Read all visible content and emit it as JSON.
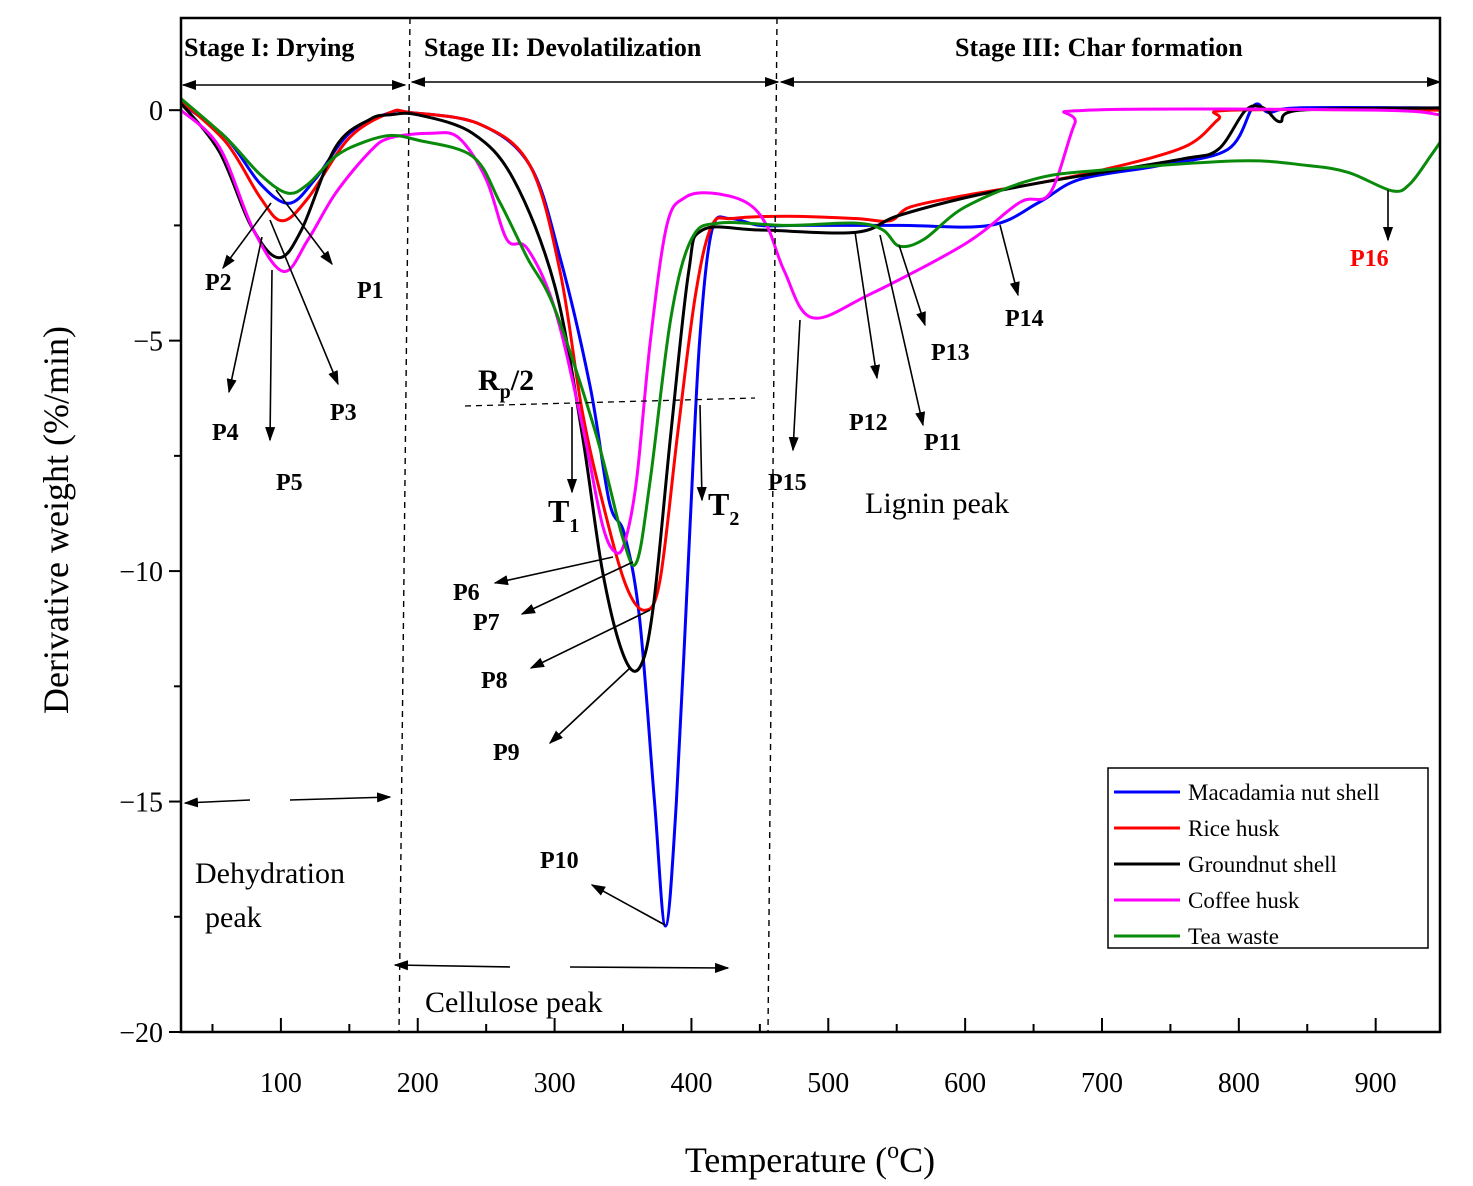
{
  "chart_data": {
    "type": "line",
    "title": "",
    "xlabel": "Temperature (",
    "xlabel_sup": "o",
    "xlabel_unit": "C)",
    "ylabel": "Derivative weight (%/min)",
    "xlim": [
      27,
      947
    ],
    "ylim": [
      -20,
      2
    ],
    "xticks": [
      100,
      200,
      300,
      400,
      500,
      600,
      700,
      800,
      900
    ],
    "xtick_labels": [
      "100",
      "200",
      "300",
      "400",
      "500",
      "600",
      "700",
      "800",
      "900"
    ],
    "yticks": [
      0,
      -5,
      -10,
      -15,
      -20
    ],
    "ytick_labels": [
      "0",
      "−5",
      "−10",
      "−15",
      "−20"
    ],
    "grid": false,
    "legend_position": "bottom-right",
    "series": [
      {
        "name": "Macadamia nut shell",
        "color": "#0000ff",
        "points": [
          [
            27,
            0.15
          ],
          [
            60,
            -0.6
          ],
          [
            85,
            -1.6
          ],
          [
            106,
            -2.02
          ],
          [
            125,
            -1.5
          ],
          [
            150,
            -0.5
          ],
          [
            180,
            -0.05
          ],
          [
            194,
            -0.05
          ],
          [
            245,
            -0.3
          ],
          [
            282,
            -1.2
          ],
          [
            304,
            -3.2
          ],
          [
            326,
            -6
          ],
          [
            340,
            -8.5
          ],
          [
            351,
            -9.2
          ],
          [
            362,
            -11
          ],
          [
            373,
            -15
          ],
          [
            381,
            -17.7
          ],
          [
            389,
            -15
          ],
          [
            399,
            -9
          ],
          [
            406,
            -5
          ],
          [
            415,
            -2.6
          ],
          [
            428,
            -2.35
          ],
          [
            450,
            -2.5
          ],
          [
            479,
            -2.5
          ],
          [
            552,
            -2.5
          ],
          [
            618,
            -2.5
          ],
          [
            654,
            -2.0
          ],
          [
            684,
            -1.5
          ],
          [
            742,
            -1.2
          ],
          [
            792,
            -0.85
          ],
          [
            811,
            0.1
          ],
          [
            822,
            -0.05
          ],
          [
            844,
            0.05
          ],
          [
            947,
            0.05
          ]
        ]
      },
      {
        "name": "Rice husk",
        "color": "#ff0000",
        "points": [
          [
            27,
            0.2
          ],
          [
            60,
            -0.7
          ],
          [
            85,
            -1.9
          ],
          [
            101,
            -2.4
          ],
          [
            120,
            -1.9
          ],
          [
            150,
            -0.6
          ],
          [
            180,
            -0.05
          ],
          [
            194,
            -0.05
          ],
          [
            245,
            -0.3
          ],
          [
            282,
            -1.2
          ],
          [
            304,
            -3.5
          ],
          [
            320,
            -6.5
          ],
          [
            335,
            -8.5
          ],
          [
            352,
            -10.3
          ],
          [
            366,
            -10.85
          ],
          [
            377,
            -10.2
          ],
          [
            390,
            -7
          ],
          [
            403,
            -4
          ],
          [
            415,
            -2.5
          ],
          [
            430,
            -2.35
          ],
          [
            470,
            -2.3
          ],
          [
            520,
            -2.35
          ],
          [
            545,
            -2.4
          ],
          [
            560,
            -2.1
          ],
          [
            600,
            -1.85
          ],
          [
            650,
            -1.6
          ],
          [
            700,
            -1.3
          ],
          [
            760,
            -0.8
          ],
          [
            785,
            -0.2
          ],
          [
            795,
            0.0
          ],
          [
            947,
            0.0
          ]
        ]
      },
      {
        "name": "Groundnut shell",
        "color": "#000000",
        "points": [
          [
            27,
            0.15
          ],
          [
            55,
            -0.9
          ],
          [
            78,
            -2.5
          ],
          [
            98,
            -3.2
          ],
          [
            115,
            -2.6
          ],
          [
            140,
            -0.8
          ],
          [
            165,
            -0.2
          ],
          [
            180,
            -0.1
          ],
          [
            200,
            -0.1
          ],
          [
            240,
            -0.5
          ],
          [
            270,
            -1.5
          ],
          [
            300,
            -3.8
          ],
          [
            320,
            -7
          ],
          [
            335,
            -10
          ],
          [
            350,
            -11.8
          ],
          [
            362,
            -12.1
          ],
          [
            372,
            -10.8
          ],
          [
            385,
            -7
          ],
          [
            398,
            -3.5
          ],
          [
            408,
            -2.6
          ],
          [
            450,
            -2.6
          ],
          [
            520,
            -2.65
          ],
          [
            550,
            -2.3
          ],
          [
            600,
            -1.9
          ],
          [
            650,
            -1.6
          ],
          [
            700,
            -1.35
          ],
          [
            760,
            -1.05
          ],
          [
            785,
            -0.85
          ],
          [
            805,
            0.0
          ],
          [
            818,
            0.05
          ],
          [
            830,
            -0.25
          ],
          [
            845,
            0.0
          ],
          [
            947,
            0.05
          ]
        ]
      },
      {
        "name": "Coffee husk",
        "color": "#ff00ff",
        "points": [
          [
            27,
            0.0
          ],
          [
            55,
            -0.8
          ],
          [
            80,
            -2.6
          ],
          [
            102,
            -3.5
          ],
          [
            120,
            -2.8
          ],
          [
            140,
            -1.8
          ],
          [
            165,
            -0.9
          ],
          [
            180,
            -0.6
          ],
          [
            210,
            -0.5
          ],
          [
            230,
            -0.6
          ],
          [
            250,
            -1.5
          ],
          [
            265,
            -2.8
          ],
          [
            280,
            -3.0
          ],
          [
            300,
            -4.3
          ],
          [
            320,
            -6.8
          ],
          [
            335,
            -9.0
          ],
          [
            345,
            -9.6
          ],
          [
            352,
            -9.3
          ],
          [
            360,
            -8
          ],
          [
            370,
            -5
          ],
          [
            382,
            -2.5
          ],
          [
            395,
            -1.9
          ],
          [
            415,
            -1.8
          ],
          [
            440,
            -2.0
          ],
          [
            455,
            -2.5
          ],
          [
            468,
            -3.5
          ],
          [
            488,
            -4.5
          ],
          [
            530,
            -4.0
          ],
          [
            600,
            -2.9
          ],
          [
            640,
            -2.0
          ],
          [
            662,
            -1.8
          ],
          [
            680,
            -0.3
          ],
          [
            690,
            0.0
          ],
          [
            900,
            0.0
          ],
          [
            947,
            -0.1
          ]
        ]
      },
      {
        "name": "Tea waste",
        "color": "#0a8a0a",
        "points": [
          [
            27,
            0.25
          ],
          [
            60,
            -0.6
          ],
          [
            85,
            -1.4
          ],
          [
            105,
            -1.8
          ],
          [
            120,
            -1.6
          ],
          [
            140,
            -1.0
          ],
          [
            160,
            -0.7
          ],
          [
            180,
            -0.55
          ],
          [
            200,
            -0.65
          ],
          [
            240,
            -1.0
          ],
          [
            260,
            -2.0
          ],
          [
            280,
            -3.2
          ],
          [
            300,
            -4.3
          ],
          [
            330,
            -7.0
          ],
          [
            350,
            -9.3
          ],
          [
            360,
            -9.8
          ],
          [
            370,
            -8.0
          ],
          [
            385,
            -4.5
          ],
          [
            400,
            -2.8
          ],
          [
            420,
            -2.45
          ],
          [
            470,
            -2.5
          ],
          [
            520,
            -2.45
          ],
          [
            540,
            -2.6
          ],
          [
            552,
            -2.95
          ],
          [
            570,
            -2.8
          ],
          [
            600,
            -2.1
          ],
          [
            650,
            -1.5
          ],
          [
            700,
            -1.3
          ],
          [
            800,
            -1.1
          ],
          [
            850,
            -1.2
          ],
          [
            880,
            -1.35
          ],
          [
            912,
            -1.75
          ],
          [
            925,
            -1.6
          ],
          [
            940,
            -1.0
          ],
          [
            947,
            -0.7
          ]
        ]
      }
    ],
    "annotations": {
      "stages": [
        "Stage I: Drying",
        "Stage  II: Devolatilization",
        "Stage  III: Char formation"
      ],
      "peak_labels": [
        "P1",
        "P2",
        "P3",
        "P4",
        "P5",
        "P6",
        "P7",
        "P8",
        "P9",
        "P10",
        "P11",
        "P12",
        "P13",
        "P14",
        "P15",
        "P16"
      ],
      "highlight_color": "#ff0000",
      "rp_main": "R",
      "rp_sub": "p",
      "rp_tail": "/2",
      "t1_main": "T",
      "t1_sub": "1",
      "t2_main": "T",
      "t2_sub": "2",
      "dehydration_line1": "Dehydration",
      "dehydration_line2": "peak",
      "cellulose": "Cellulose peak",
      "lignin": "Lignin peak"
    }
  }
}
